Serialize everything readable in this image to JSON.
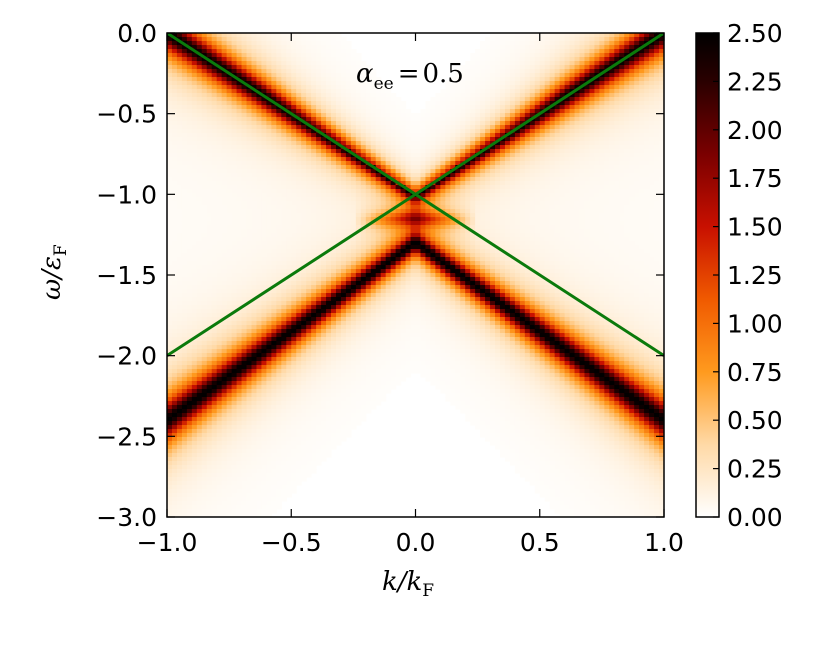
{
  "chart_data": {
    "type": "heatmap",
    "title": "",
    "annotation": {
      "symbol": "α",
      "subscript": "ee",
      "relation": "=",
      "value": "0.5"
    },
    "xlabel": {
      "main": "k/k",
      "subscript": "F"
    },
    "ylabel": {
      "main": "ω/ε",
      "subscript": "F"
    },
    "xlim": [
      -1.0,
      1.0
    ],
    "ylim": [
      -3.0,
      0.0
    ],
    "x_ticks": [
      -1.0,
      -0.5,
      0.0,
      0.5,
      1.0
    ],
    "x_tick_labels": [
      "−1.0",
      "−0.5",
      "0.0",
      "0.5",
      "1.0"
    ],
    "y_ticks": [
      0.0,
      -0.5,
      -1.0,
      -1.5,
      -2.0,
      -2.5,
      -3.0
    ],
    "y_tick_labels": [
      "0.0",
      "−0.5",
      "−1.0",
      "−1.5",
      "−2.0",
      "−2.5",
      "−3.0"
    ],
    "colorbar": {
      "range": [
        0.0,
        2.5
      ],
      "ticks": [
        0.0,
        0.25,
        0.5,
        0.75,
        1.0,
        1.25,
        1.5,
        1.75,
        2.0,
        2.25,
        2.5
      ],
      "tick_labels": [
        "0.00",
        "0.25",
        "0.50",
        "0.75",
        "1.00",
        "1.25",
        "1.50",
        "1.75",
        "2.00",
        "2.25",
        "2.50"
      ],
      "colormap": "gist_heat_r"
    },
    "overlay_lines": [
      {
        "x": [
          -1.0,
          1.0
        ],
        "y": [
          0.0,
          -2.0
        ],
        "color": "#0b7a0b"
      },
      {
        "x": [
          -1.0,
          1.0
        ],
        "y": [
          -2.0,
          0.0
        ],
        "color": "#0b7a0b"
      }
    ],
    "spectral_features": {
      "upper_band_apex": [
        0.0,
        -1.0
      ],
      "lower_band_apex": [
        0.0,
        -1.3
      ],
      "band_peak": 2.5
    },
    "grid": false
  }
}
